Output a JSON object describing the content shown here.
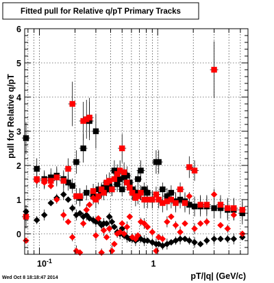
{
  "title": "Fitted pull for Relative q/pT  Primary Tracks",
  "timestamp": "Wed Oct  8 18:18:47 2014",
  "chart_data": {
    "type": "scatter",
    "title": "Fitted pull for Relative q/pT  Primary Tracks",
    "xlabel": "pT/|q| (GeV/c)",
    "ylabel": "pull for Relative q/pT",
    "xscale": "log",
    "xlim": [
      0.075,
      5.8
    ],
    "ylim": [
      -0.6,
      6.0
    ],
    "x_tick_labels": [
      "10^-1",
      "1"
    ],
    "y_tick_labels": [
      "0",
      "1",
      "2",
      "3",
      "4",
      "5",
      "6"
    ],
    "grid": true,
    "series": [
      {
        "color": "#000000",
        "marker": "square",
        "points": [
          [
            0.077,
            2.8
          ],
          [
            0.095,
            1.9
          ],
          [
            0.11,
            1.6
          ],
          [
            0.125,
            1.65
          ],
          [
            0.14,
            1.7
          ],
          [
            0.16,
            1.6
          ],
          [
            0.175,
            1.5
          ],
          [
            0.19,
            1.4
          ],
          [
            0.205,
            2.1
          ],
          [
            0.22,
            1.05
          ],
          [
            0.235,
            2.5
          ],
          [
            0.25,
            1.2
          ],
          [
            0.265,
            3.3
          ],
          [
            0.285,
            1.1
          ],
          [
            0.3,
            3.0
          ],
          [
            0.315,
            1.3
          ],
          [
            0.335,
            1.25
          ],
          [
            0.35,
            1.35
          ],
          [
            0.37,
            1.3
          ],
          [
            0.39,
            1.4
          ],
          [
            0.41,
            1.3
          ],
          [
            0.43,
            1.85
          ],
          [
            0.455,
            1.45
          ],
          [
            0.48,
            1.6
          ],
          [
            0.5,
            1.3
          ],
          [
            0.52,
            1.65
          ],
          [
            0.55,
            1.7
          ],
          [
            0.58,
            1.5
          ],
          [
            0.61,
            1.3
          ],
          [
            0.65,
            1.2
          ],
          [
            0.68,
            1.6
          ],
          [
            0.72,
            1.85
          ],
          [
            0.77,
            1.3
          ],
          [
            0.82,
            1.2
          ],
          [
            0.9,
            1.0
          ],
          [
            0.97,
            2.1
          ],
          [
            1.02,
            2.1
          ],
          [
            1.1,
            1.3
          ],
          [
            1.2,
            1.1
          ],
          [
            1.3,
            1.2
          ],
          [
            1.42,
            0.95
          ],
          [
            1.55,
            1.0
          ],
          [
            1.7,
            0.95
          ],
          [
            1.85,
            0.85
          ],
          [
            2.05,
            0.8
          ],
          [
            2.3,
            0.8
          ],
          [
            2.6,
            0.8
          ],
          [
            3.0,
            0.75
          ],
          [
            3.4,
            0.75
          ],
          [
            3.9,
            0.7
          ],
          [
            4.4,
            0.7
          ],
          [
            5.2,
            0.6
          ]
        ]
      },
      {
        "color": "#ff0000",
        "marker": "square",
        "points": [
          [
            0.077,
            0.5
          ],
          [
            0.095,
            1.6
          ],
          [
            0.11,
            1.55
          ],
          [
            0.125,
            1.55
          ],
          [
            0.14,
            1.65
          ],
          [
            0.16,
            1.55
          ],
          [
            0.175,
            1.9
          ],
          [
            0.19,
            3.8
          ],
          [
            0.205,
            1.1
          ],
          [
            0.22,
            1.1
          ],
          [
            0.235,
            3.3
          ],
          [
            0.25,
            3.35
          ],
          [
            0.265,
            3.4
          ],
          [
            0.285,
            1.25
          ],
          [
            0.3,
            1.0
          ],
          [
            0.315,
            1.1
          ],
          [
            0.335,
            1.3
          ],
          [
            0.35,
            1.2
          ],
          [
            0.37,
            1.5
          ],
          [
            0.39,
            1.55
          ],
          [
            0.41,
            1.3
          ],
          [
            0.43,
            1.6
          ],
          [
            0.455,
            1.75
          ],
          [
            0.48,
            1.85
          ],
          [
            0.5,
            2.5
          ],
          [
            0.52,
            1.8
          ],
          [
            0.55,
            1.5
          ],
          [
            0.58,
            1.35
          ],
          [
            0.61,
            1.2
          ],
          [
            0.65,
            1.05
          ],
          [
            0.68,
            1.1
          ],
          [
            0.72,
            1.2
          ],
          [
            0.77,
            1.0
          ],
          [
            0.82,
            1.0
          ],
          [
            0.9,
            1.0
          ],
          [
            0.97,
            1.15
          ],
          [
            1.02,
            1.0
          ],
          [
            1.1,
            0.9
          ],
          [
            1.2,
            0.95
          ],
          [
            1.3,
            1.0
          ],
          [
            1.42,
            0.9
          ],
          [
            1.55,
            1.3
          ],
          [
            1.7,
            0.9
          ],
          [
            1.85,
            1.95
          ],
          [
            2.05,
            1.85
          ],
          [
            2.3,
            0.85
          ],
          [
            2.6,
            0.85
          ],
          [
            3.0,
            4.8
          ],
          [
            3.4,
            0.85
          ],
          [
            3.9,
            0.75
          ],
          [
            4.4,
            0.75
          ],
          [
            5.2,
            0.7
          ]
        ]
      },
      {
        "color": "#000000",
        "marker": "diamond",
        "points": [
          [
            0.077,
            0.65
          ],
          [
            0.095,
            0.4
          ],
          [
            0.11,
            0.55
          ],
          [
            0.125,
            0.9
          ],
          [
            0.14,
            1.05
          ],
          [
            0.16,
            1.15
          ],
          [
            0.175,
            1.0
          ],
          [
            0.19,
            0.75
          ],
          [
            0.205,
            0.55
          ],
          [
            0.22,
            0.6
          ],
          [
            0.235,
            0.5
          ],
          [
            0.25,
            0.55
          ],
          [
            0.265,
            0.45
          ],
          [
            0.285,
            0.4
          ],
          [
            0.3,
            0.35
          ],
          [
            0.315,
            0.35
          ],
          [
            0.335,
            0.25
          ],
          [
            0.35,
            0.3
          ],
          [
            0.37,
            0.3
          ],
          [
            0.39,
            0.5
          ],
          [
            0.41,
            0.35
          ],
          [
            0.43,
            0.2
          ],
          [
            0.455,
            0.05
          ],
          [
            0.48,
            0.0
          ],
          [
            0.5,
            0.15
          ],
          [
            0.52,
            -0.05
          ],
          [
            0.55,
            -0.1
          ],
          [
            0.58,
            -0.15
          ],
          [
            0.61,
            -0.15
          ],
          [
            0.65,
            -0.2
          ],
          [
            0.68,
            -0.15
          ],
          [
            0.72,
            -0.15
          ],
          [
            0.77,
            -0.2
          ],
          [
            0.82,
            -0.2
          ],
          [
            0.9,
            -0.25
          ],
          [
            0.97,
            -0.3
          ],
          [
            1.02,
            -0.3
          ],
          [
            1.1,
            -0.35
          ],
          [
            1.2,
            -0.3
          ],
          [
            1.3,
            -0.25
          ],
          [
            1.42,
            -0.2
          ],
          [
            1.55,
            -0.15
          ],
          [
            1.7,
            -0.15
          ],
          [
            1.85,
            -0.2
          ],
          [
            2.05,
            -0.25
          ],
          [
            2.3,
            -0.3
          ],
          [
            2.6,
            -0.2
          ],
          [
            3.0,
            -0.15
          ],
          [
            3.4,
            -0.15
          ],
          [
            3.9,
            -0.15
          ],
          [
            4.4,
            -0.15
          ],
          [
            5.2,
            -0.1
          ]
        ]
      },
      {
        "color": "#ff0000",
        "marker": "diamond",
        "points": [
          [
            0.077,
            -0.2
          ],
          [
            0.095,
            1.55
          ],
          [
            0.11,
            1.5
          ],
          [
            0.125,
            1.4
          ],
          [
            0.14,
            1.0
          ],
          [
            0.16,
            0.55
          ],
          [
            0.175,
            0.35
          ],
          [
            0.19,
            -0.1
          ],
          [
            0.205,
            -0.5
          ],
          [
            0.22,
            -0.55
          ],
          [
            0.235,
            0.3
          ],
          [
            0.25,
            0.7
          ],
          [
            0.265,
            0.85
          ],
          [
            0.285,
            1.05
          ],
          [
            0.3,
            -0.05
          ],
          [
            0.315,
            0.45
          ],
          [
            0.335,
            -0.55
          ],
          [
            0.35,
            0.1
          ],
          [
            0.37,
            -0.1
          ],
          [
            0.39,
            0.15
          ],
          [
            0.41,
            -0.5
          ],
          [
            0.43,
            -0.3
          ],
          [
            0.455,
            0.0
          ],
          [
            0.48,
            0.05
          ],
          [
            0.5,
            0.3
          ],
          [
            0.52,
            0.0
          ],
          [
            0.55,
            0.2
          ],
          [
            0.58,
            0.5
          ],
          [
            0.61,
            -0.1
          ],
          [
            0.65,
            -0.15
          ],
          [
            0.68,
            -0.05
          ],
          [
            0.72,
            0.35
          ],
          [
            0.77,
            0.3
          ],
          [
            0.82,
            0.2
          ],
          [
            0.9,
            0.05
          ],
          [
            0.97,
            -0.5
          ],
          [
            1.02,
            -0.1
          ],
          [
            1.1,
            -0.15
          ],
          [
            1.2,
            0.35
          ],
          [
            1.3,
            0.5
          ],
          [
            1.42,
            0.25
          ],
          [
            1.55,
            0.05
          ],
          [
            1.7,
            0.3
          ],
          [
            1.85,
            1.1
          ],
          [
            2.05,
            0.15
          ],
          [
            2.3,
            0.3
          ],
          [
            2.6,
            0.35
          ],
          [
            3.0,
            1.15
          ],
          [
            3.4,
            0.25
          ],
          [
            3.9,
            0.15
          ],
          [
            4.4,
            0.55
          ],
          [
            5.2,
            0.0
          ]
        ]
      }
    ]
  }
}
